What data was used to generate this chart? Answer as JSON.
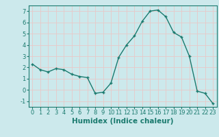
{
  "x": [
    0,
    1,
    2,
    3,
    4,
    5,
    6,
    7,
    8,
    9,
    10,
    11,
    12,
    13,
    14,
    15,
    16,
    17,
    18,
    19,
    20,
    21,
    22,
    23
  ],
  "y": [
    2.3,
    1.8,
    1.6,
    1.9,
    1.8,
    1.4,
    1.2,
    1.1,
    -0.3,
    -0.2,
    0.6,
    2.9,
    4.0,
    4.8,
    6.1,
    7.0,
    7.1,
    6.5,
    5.1,
    4.7,
    3.0,
    -0.1,
    -0.3,
    -1.2
  ],
  "line_color": "#1a7a6e",
  "marker": "+",
  "marker_size": 3,
  "xlabel": "Humidex (Indice chaleur)",
  "xlim": [
    -0.5,
    23.5
  ],
  "ylim": [
    -1.5,
    7.5
  ],
  "yticks": [
    -1,
    0,
    1,
    2,
    3,
    4,
    5,
    6,
    7
  ],
  "xticks": [
    0,
    1,
    2,
    3,
    4,
    5,
    6,
    7,
    8,
    9,
    10,
    11,
    12,
    13,
    14,
    15,
    16,
    17,
    18,
    19,
    20,
    21,
    22,
    23
  ],
  "bg_color": "#cce9ec",
  "grid_color": "#e8c8c8",
  "line_width": 1.0,
  "tick_color": "#1a7a6e",
  "label_color": "#1a7a6e",
  "xlabel_fontsize": 7.5,
  "tick_fontsize": 6.0
}
